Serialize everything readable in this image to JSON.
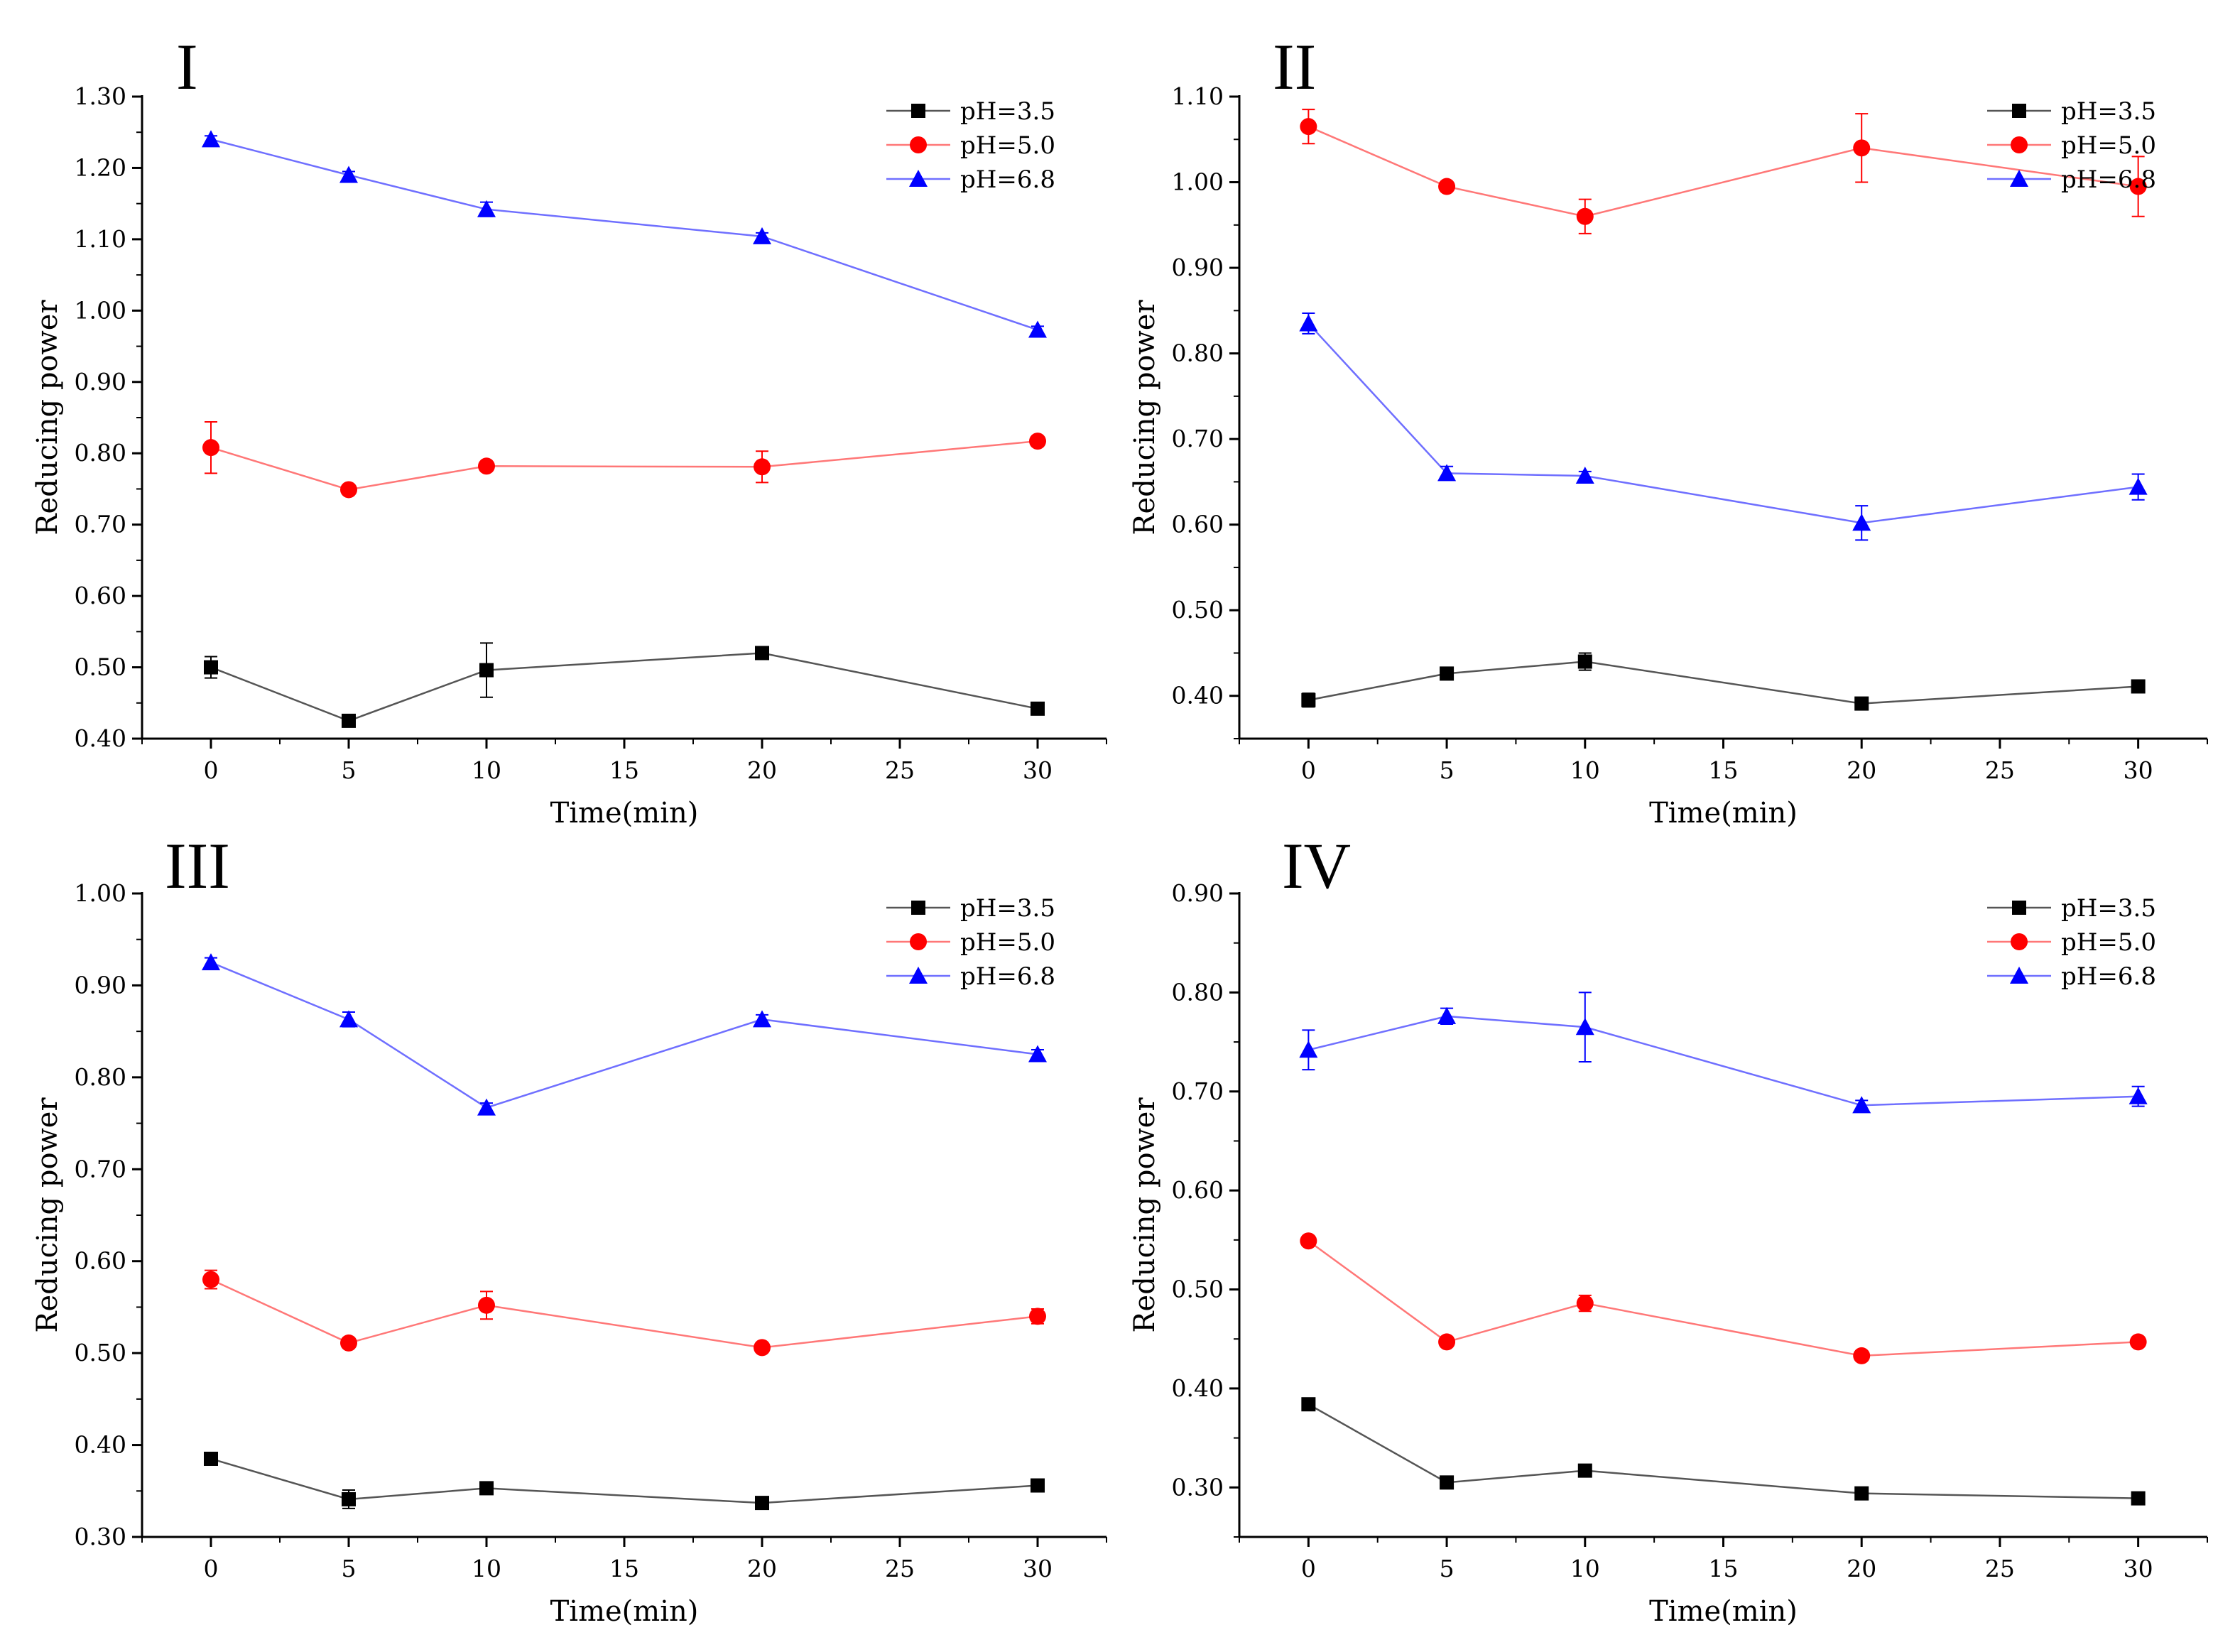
{
  "chart_data": [
    {
      "type": "line",
      "panel_label": "I",
      "xlabel": "Time(min)",
      "ylabel": "Reducing power",
      "xlim": [
        -2.5,
        32.5
      ],
      "ylim": [
        0.4,
        1.3
      ],
      "xticks": [
        0,
        5,
        10,
        15,
        20,
        25,
        30
      ],
      "yticks": [
        "0.40",
        "0.50",
        "0.60",
        "0.70",
        "0.80",
        "0.90",
        "1.00",
        "1.10",
        "1.20",
        "1.30"
      ],
      "legend": "top-right",
      "x": [
        0,
        5,
        10,
        20,
        30
      ],
      "series": [
        {
          "name": "pH=3.5",
          "color": "#000000",
          "line_color": "#555555",
          "marker": "square",
          "values": [
            0.5,
            0.425,
            0.496,
            0.52,
            0.442
          ],
          "errors": [
            0.015,
            0.008,
            0.038,
            0.008,
            0.005
          ]
        },
        {
          "name": "pH=5.0",
          "color": "#ff0000",
          "line_color": "#ff7777",
          "marker": "circle",
          "values": [
            0.808,
            0.749,
            0.782,
            0.781,
            0.817
          ],
          "errors": [
            0.036,
            0.005,
            0.005,
            0.022,
            0.005
          ]
        },
        {
          "name": "pH=6.8",
          "color": "#0000ff",
          "line_color": "#6f6fff",
          "marker": "triangle",
          "values": [
            1.24,
            1.19,
            1.142,
            1.104,
            0.973
          ],
          "errors": [
            0.005,
            0.005,
            0.01,
            0.005,
            0.005
          ]
        }
      ]
    },
    {
      "type": "line",
      "panel_label": "II",
      "xlabel": "Time(min)",
      "ylabel": "Reducing power",
      "xlim": [
        -2.5,
        32.5
      ],
      "ylim": [
        0.35,
        1.1
      ],
      "xticks": [
        0,
        5,
        10,
        15,
        20,
        25,
        30
      ],
      "yticks": [
        "0.40",
        "0.50",
        "0.60",
        "0.70",
        "0.80",
        "0.90",
        "1.00",
        "1.10"
      ],
      "legend": "top-right",
      "x": [
        0,
        5,
        10,
        20,
        30
      ],
      "series": [
        {
          "name": "pH=3.5",
          "color": "#000000",
          "line_color": "#555555",
          "marker": "square",
          "values": [
            0.395,
            0.426,
            0.44,
            0.391,
            0.411
          ],
          "errors": [
            0.008,
            0.005,
            0.01,
            0.005,
            0.005
          ]
        },
        {
          "name": "pH=5.0",
          "color": "#ff0000",
          "line_color": "#ff7777",
          "marker": "circle",
          "values": [
            1.065,
            0.995,
            0.96,
            1.04,
            0.995
          ],
          "errors": [
            0.02,
            0.005,
            0.02,
            0.04,
            0.035
          ]
        },
        {
          "name": "pH=6.8",
          "color": "#0000ff",
          "line_color": "#6f6fff",
          "marker": "triangle",
          "values": [
            0.835,
            0.66,
            0.657,
            0.602,
            0.644
          ],
          "errors": [
            0.012,
            0.008,
            0.005,
            0.02,
            0.015
          ]
        }
      ]
    },
    {
      "type": "line",
      "panel_label": "III",
      "xlabel": "Time(min)",
      "ylabel": "Reducing power",
      "xlim": [
        -2.5,
        32.5
      ],
      "ylim": [
        0.3,
        1.0
      ],
      "xticks": [
        0,
        5,
        10,
        15,
        20,
        25,
        30
      ],
      "yticks": [
        "0.30",
        "0.40",
        "0.50",
        "0.60",
        "0.70",
        "0.80",
        "0.90",
        "1.00"
      ],
      "legend": "top-right",
      "x": [
        0,
        5,
        10,
        20,
        30
      ],
      "series": [
        {
          "name": "pH=3.5",
          "color": "#000000",
          "line_color": "#555555",
          "marker": "square",
          "values": [
            0.385,
            0.341,
            0.353,
            0.337,
            0.356
          ],
          "errors": [
            0.005,
            0.01,
            0.005,
            0.005,
            0.005
          ]
        },
        {
          "name": "pH=5.0",
          "color": "#ff0000",
          "line_color": "#ff7777",
          "marker": "circle",
          "values": [
            0.58,
            0.511,
            0.552,
            0.506,
            0.54
          ],
          "errors": [
            0.01,
            0.005,
            0.015,
            0.005,
            0.008
          ]
        },
        {
          "name": "pH=6.8",
          "color": "#0000ff",
          "line_color": "#6f6fff",
          "marker": "triangle",
          "values": [
            0.925,
            0.863,
            0.767,
            0.863,
            0.825
          ],
          "errors": [
            0.005,
            0.008,
            0.005,
            0.005,
            0.005
          ]
        }
      ]
    },
    {
      "type": "line",
      "panel_label": "IV",
      "xlabel": "Time(min)",
      "ylabel": "Reducing power",
      "xlim": [
        -2.5,
        32.5
      ],
      "ylim": [
        0.25,
        0.9
      ],
      "xticks": [
        0,
        5,
        10,
        15,
        20,
        25,
        30
      ],
      "yticks": [
        "0.30",
        "0.40",
        "0.50",
        "0.60",
        "0.70",
        "0.80",
        "0.90"
      ],
      "legend": "top-right",
      "x": [
        0,
        5,
        10,
        20,
        30
      ],
      "series": [
        {
          "name": "pH=3.5",
          "color": "#000000",
          "line_color": "#555555",
          "marker": "square",
          "values": [
            0.384,
            0.305,
            0.317,
            0.294,
            0.289
          ],
          "errors": [
            0.005,
            0.005,
            0.005,
            0.005,
            0.005
          ]
        },
        {
          "name": "pH=5.0",
          "color": "#ff0000",
          "line_color": "#ff7777",
          "marker": "circle",
          "values": [
            0.549,
            0.447,
            0.486,
            0.433,
            0.447
          ],
          "errors": [
            0.005,
            0.005,
            0.008,
            0.005,
            0.005
          ]
        },
        {
          "name": "pH=6.8",
          "color": "#0000ff",
          "line_color": "#6f6fff",
          "marker": "triangle",
          "values": [
            0.742,
            0.776,
            0.765,
            0.686,
            0.695
          ],
          "errors": [
            0.02,
            0.008,
            0.035,
            0.005,
            0.01
          ]
        }
      ]
    }
  ]
}
